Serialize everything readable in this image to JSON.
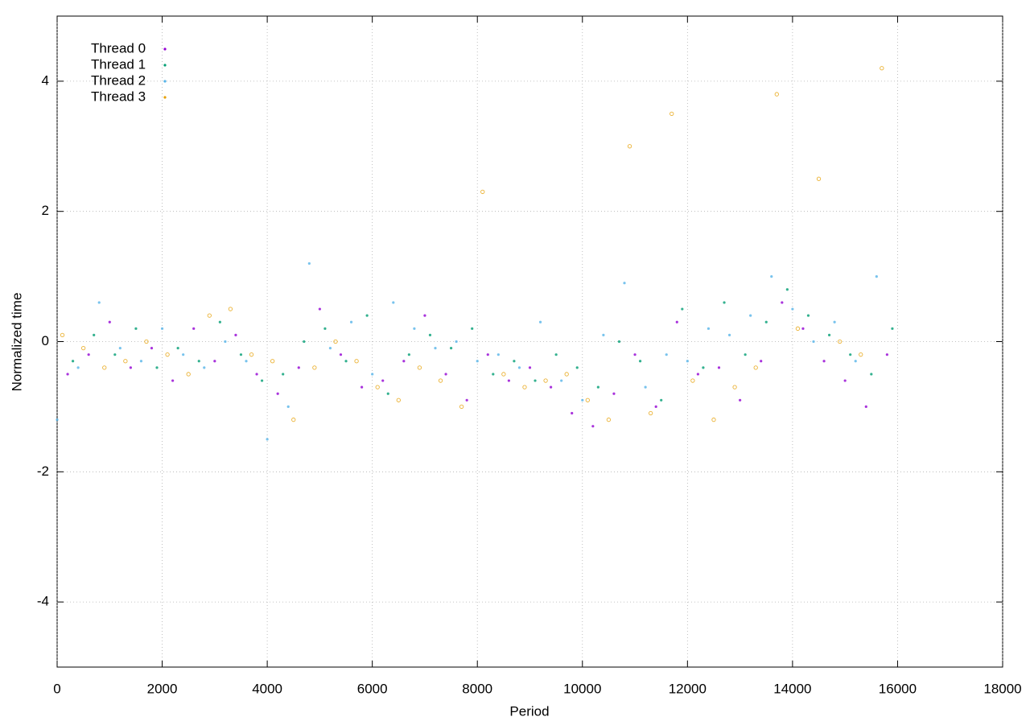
{
  "chart_data": {
    "type": "scatter",
    "xlabel": "Period",
    "ylabel": "Normalized time",
    "xlim": [
      0,
      18000
    ],
    "ylim": [
      -5,
      5
    ],
    "xticks": [
      0,
      2000,
      4000,
      6000,
      8000,
      10000,
      12000,
      14000,
      16000,
      18000
    ],
    "yticks": [
      -4,
      -2,
      0,
      2,
      4
    ],
    "grid": true,
    "legend": "upper-left",
    "series": [
      {
        "name": "Thread 0",
        "color": "#9400d3",
        "x": [
          200,
          600,
          1000,
          1400,
          1800,
          2200,
          2600,
          3000,
          3400,
          3800,
          4200,
          4600,
          5000,
          5400,
          5800,
          6200,
          6600,
          7000,
          7400,
          7800,
          8200,
          8600,
          9000,
          9400,
          9800,
          10200,
          10600,
          11000,
          11400,
          11800,
          12200,
          12600,
          13000,
          13400,
          13800,
          14200,
          14600,
          15000,
          15400,
          15800
        ],
        "values": [
          -0.5,
          -0.2,
          0.3,
          -0.4,
          -0.1,
          -0.6,
          0.2,
          -0.3,
          0.1,
          -0.5,
          -0.8,
          -0.4,
          0.5,
          -0.2,
          -0.7,
          -0.6,
          -0.3,
          0.4,
          -0.5,
          -0.9,
          -0.2,
          -0.6,
          -0.4,
          -0.7,
          -1.1,
          -1.3,
          -0.8,
          -0.2,
          -1.0,
          0.3,
          -0.5,
          -0.4,
          -0.9,
          -0.3,
          0.6,
          0.2,
          -0.3,
          -0.6,
          -1.0,
          -0.2
        ]
      },
      {
        "name": "Thread 1",
        "color": "#009e73",
        "x": [
          300,
          700,
          1100,
          1500,
          1900,
          2300,
          2700,
          3100,
          3500,
          3900,
          4300,
          4700,
          5100,
          5500,
          5900,
          6300,
          6700,
          7100,
          7500,
          7900,
          8300,
          8700,
          9100,
          9500,
          9900,
          10300,
          10700,
          11100,
          11500,
          11900,
          12300,
          12700,
          13100,
          13500,
          13900,
          14300,
          14700,
          15100,
          15500,
          15900
        ],
        "values": [
          -0.3,
          0.1,
          -0.2,
          0.2,
          -0.4,
          -0.1,
          -0.3,
          0.3,
          -0.2,
          -0.6,
          -0.5,
          0.0,
          0.2,
          -0.3,
          0.4,
          -0.8,
          -0.2,
          0.1,
          -0.1,
          0.2,
          -0.5,
          -0.3,
          -0.6,
          -0.2,
          -0.4,
          -0.7,
          0.0,
          -0.3,
          -0.9,
          0.5,
          -0.4,
          0.6,
          -0.2,
          0.3,
          0.8,
          0.4,
          0.1,
          -0.2,
          -0.5,
          0.2
        ]
      },
      {
        "name": "Thread 2",
        "color": "#56b4e9",
        "x": [
          0,
          400,
          800,
          1200,
          1600,
          2000,
          2400,
          2800,
          3200,
          3600,
          4000,
          4400,
          4800,
          5200,
          5600,
          6000,
          6400,
          6800,
          7200,
          7600,
          8000,
          8400,
          8800,
          9200,
          9600,
          10000,
          10400,
          10800,
          11200,
          11600,
          12000,
          12400,
          12800,
          13200,
          13600,
          14000,
          14400,
          14800,
          15200,
          15600
        ],
        "values": [
          -1.2,
          -0.4,
          0.6,
          -0.1,
          -0.3,
          0.2,
          -0.2,
          -0.4,
          0.0,
          -0.3,
          -1.5,
          -1.0,
          1.2,
          -0.1,
          0.3,
          -0.5,
          0.6,
          0.2,
          -0.1,
          0.0,
          -0.3,
          -0.2,
          -0.4,
          0.3,
          -0.6,
          -0.9,
          0.1,
          0.9,
          -0.7,
          -0.2,
          -0.3,
          0.2,
          0.1,
          0.4,
          1.0,
          0.5,
          0.0,
          0.3,
          -0.3,
          1.0
        ]
      },
      {
        "name": "Thread 3",
        "color": "#e69f00",
        "x": [
          100,
          500,
          900,
          1300,
          1700,
          2100,
          2500,
          2900,
          3300,
          3700,
          4100,
          4500,
          4900,
          5300,
          5700,
          6100,
          6500,
          6900,
          7300,
          7700,
          8100,
          8500,
          8900,
          9300,
          9700,
          10100,
          10500,
          10900,
          11300,
          11700,
          12100,
          12500,
          12900,
          13300,
          13700,
          14100,
          14500,
          14900,
          15300,
          15700
        ],
        "values": [
          0.1,
          -0.1,
          -0.4,
          -0.3,
          0.0,
          -0.2,
          -0.5,
          0.4,
          0.5,
          -0.2,
          -0.3,
          -1.2,
          -0.4,
          0.0,
          -0.3,
          -0.7,
          -0.9,
          -0.4,
          -0.6,
          -1.0,
          2.3,
          -0.5,
          -0.7,
          -0.6,
          -0.5,
          -0.9,
          -1.2,
          3.0,
          -1.1,
          3.5,
          -0.6,
          -1.2,
          -0.7,
          -0.4,
          3.8,
          0.2,
          2.5,
          0.0,
          -0.2,
          4.2
        ]
      }
    ]
  }
}
